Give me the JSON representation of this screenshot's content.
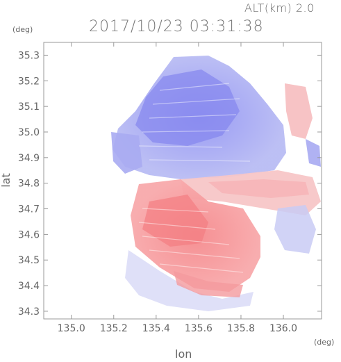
{
  "header": {
    "altitude_label": "ALT(km) 2.0",
    "timestamp": "2017/10/23 03:31:38"
  },
  "axes": {
    "x_label": "lon",
    "y_label": "lat",
    "x_unit": "(deg)",
    "y_unit": "(deg)",
    "x_ticks": [
      "135.0",
      "135.2",
      "135.4",
      "135.6",
      "135.8",
      "136.0"
    ],
    "y_ticks": [
      "35.3",
      "35.2",
      "35.1",
      "35.0",
      "34.9",
      "34.8",
      "34.7",
      "34.6",
      "34.5",
      "34.4",
      "34.3"
    ],
    "x_range": [
      134.87,
      136.18
    ],
    "y_range": [
      34.27,
      35.35
    ]
  },
  "colors": {
    "approaching": "#8a8cf0",
    "receding": "#f4878b",
    "frame": "#999999"
  }
}
